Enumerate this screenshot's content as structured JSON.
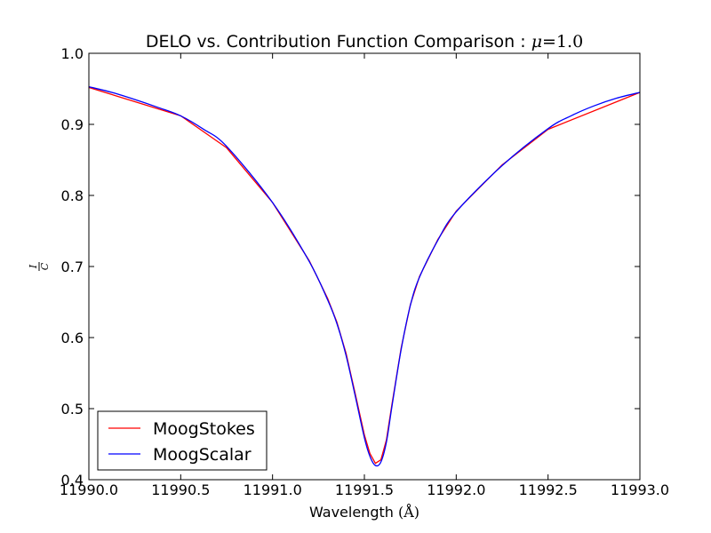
{
  "chart_data": {
    "type": "line",
    "title_prefix": "DELO vs. Contribution Function Comparison : ",
    "title_mu": "μ",
    "title_mu_value": "=1.0",
    "xlabel_prefix": "Wavelength ",
    "xlabel_unit": "(Å)",
    "ylabel_num": "I",
    "ylabel_den": "C",
    "xlim": [
      11990.0,
      11993.0
    ],
    "ylim": [
      0.4,
      1.0
    ],
    "xticks": [
      11990.0,
      11990.5,
      11991.0,
      11991.5,
      11992.0,
      11992.5,
      11993.0
    ],
    "xtick_labels": [
      "11990.0",
      "11990.5",
      "11991.0",
      "11991.5",
      "11992.0",
      "11992.5",
      "11993.0"
    ],
    "yticks": [
      0.4,
      0.5,
      0.6,
      0.7,
      0.8,
      0.9,
      1.0
    ],
    "ytick_labels": [
      "0.4",
      "0.5",
      "0.6",
      "0.7",
      "0.8",
      "0.9",
      "1.0"
    ],
    "legend_position": "lower-left",
    "series": [
      {
        "name": "MoogStokes",
        "color": "#ff0000",
        "x": [
          11990.0,
          11990.5,
          11990.75,
          11991.0,
          11991.2,
          11991.3,
          11991.35,
          11991.4,
          11991.45,
          11991.5,
          11991.53,
          11991.56,
          11991.59,
          11991.62,
          11991.65,
          11991.7,
          11991.75,
          11991.8,
          11991.9,
          11992.0,
          11992.25,
          11992.5,
          11993.0
        ],
        "y": [
          0.952,
          0.912,
          0.867,
          0.79,
          0.708,
          0.655,
          0.622,
          0.578,
          0.521,
          0.463,
          0.437,
          0.423,
          0.428,
          0.456,
          0.506,
          0.585,
          0.646,
          0.686,
          0.738,
          0.778,
          0.843,
          0.893,
          0.945
        ]
      },
      {
        "name": "MoogScalar",
        "color": "#0000ff",
        "x": [
          11990.0,
          11990.125,
          11990.25,
          11990.375,
          11990.5,
          11990.625,
          11990.75,
          11991.0,
          11991.2,
          11991.3,
          11991.35,
          11991.4,
          11991.45,
          11991.5,
          11991.53,
          11991.56,
          11991.59,
          11991.62,
          11991.65,
          11991.7,
          11991.75,
          11991.8,
          11991.9,
          11992.0,
          11992.25,
          11992.5,
          11992.625,
          11992.75,
          11992.875,
          11993.0
        ],
        "y": [
          0.953,
          0.945,
          0.935,
          0.924,
          0.912,
          0.893,
          0.869,
          0.79,
          0.707,
          0.653,
          0.62,
          0.575,
          0.518,
          0.459,
          0.433,
          0.42,
          0.425,
          0.453,
          0.503,
          0.583,
          0.645,
          0.685,
          0.737,
          0.777,
          0.842,
          0.894,
          0.912,
          0.926,
          0.937,
          0.945
        ]
      }
    ]
  }
}
